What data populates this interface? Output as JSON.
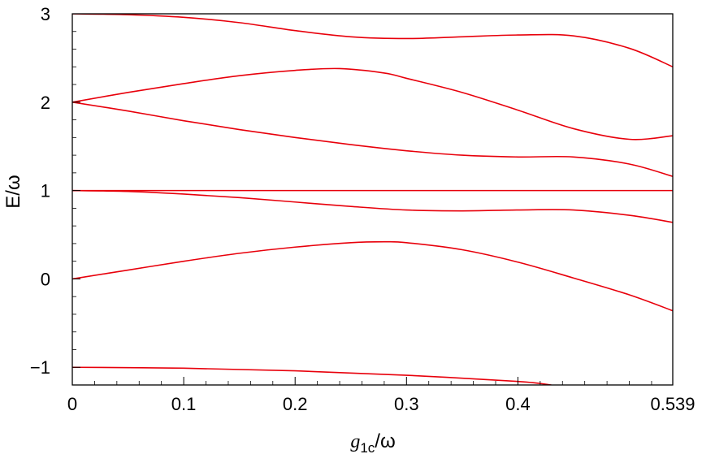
{
  "chart_data": {
    "type": "line",
    "xlabel": "g1c/ω",
    "xlabel_parts": {
      "base": "g",
      "sub": "1c",
      "tail": "/ω"
    },
    "ylabel": "E/ω",
    "xlim": [
      0,
      0.539
    ],
    "ylim": [
      -1.2,
      3
    ],
    "x_ticks": [
      {
        "value": 0,
        "label": "0"
      },
      {
        "value": 0.1,
        "label": "0.1"
      },
      {
        "value": 0.2,
        "label": "0.2"
      },
      {
        "value": 0.3,
        "label": "0.3"
      },
      {
        "value": 0.4,
        "label": "0.4"
      },
      {
        "value": 0.539,
        "label": "0.539"
      }
    ],
    "y_ticks": [
      {
        "value": -1,
        "label": "−1"
      },
      {
        "value": 0,
        "label": "0"
      },
      {
        "value": 1,
        "label": "1"
      },
      {
        "value": 2,
        "label": "2"
      },
      {
        "value": 3,
        "label": "3"
      }
    ],
    "grid": false,
    "line_color": "#e8000b",
    "series": [
      {
        "x": [
          0,
          0.1,
          0.2,
          0.3,
          0.4,
          0.43
        ],
        "values": [
          -1.0,
          -1.01,
          -1.04,
          -1.09,
          -1.16,
          -1.2
        ]
      },
      {
        "x": [
          0,
          0.05,
          0.1,
          0.15,
          0.2,
          0.25,
          0.28,
          0.3,
          0.35,
          0.4,
          0.45,
          0.5,
          0.539
        ],
        "values": [
          0.0,
          0.1,
          0.2,
          0.29,
          0.36,
          0.41,
          0.42,
          0.41,
          0.33,
          0.19,
          0.01,
          -0.18,
          -0.36
        ]
      },
      {
        "x": [
          0,
          0.539
        ],
        "values": [
          1.0,
          1.0
        ]
      },
      {
        "x": [
          0,
          0.05,
          0.1,
          0.15,
          0.2,
          0.25,
          0.3,
          0.35,
          0.4,
          0.45,
          0.5,
          0.539
        ],
        "values": [
          1.0,
          0.99,
          0.96,
          0.92,
          0.87,
          0.82,
          0.78,
          0.77,
          0.78,
          0.78,
          0.72,
          0.64
        ]
      },
      {
        "x": [
          0,
          0.05,
          0.1,
          0.15,
          0.2,
          0.25,
          0.3,
          0.35,
          0.4,
          0.45,
          0.5,
          0.539
        ],
        "values": [
          2.0,
          1.9,
          1.79,
          1.69,
          1.6,
          1.52,
          1.45,
          1.4,
          1.38,
          1.38,
          1.3,
          1.16
        ]
      },
      {
        "x": [
          0,
          0.05,
          0.1,
          0.15,
          0.2,
          0.24,
          0.28,
          0.3,
          0.35,
          0.4,
          0.45,
          0.5,
          0.539
        ],
        "values": [
          2.0,
          2.11,
          2.21,
          2.3,
          2.36,
          2.38,
          2.33,
          2.27,
          2.11,
          1.91,
          1.7,
          1.58,
          1.62
        ]
      },
      {
        "x": [
          0,
          0.05,
          0.1,
          0.15,
          0.2,
          0.25,
          0.3,
          0.35,
          0.4,
          0.45,
          0.5,
          0.539
        ],
        "values": [
          3.0,
          2.99,
          2.96,
          2.9,
          2.81,
          2.74,
          2.72,
          2.74,
          2.76,
          2.75,
          2.61,
          2.4
        ]
      }
    ]
  }
}
